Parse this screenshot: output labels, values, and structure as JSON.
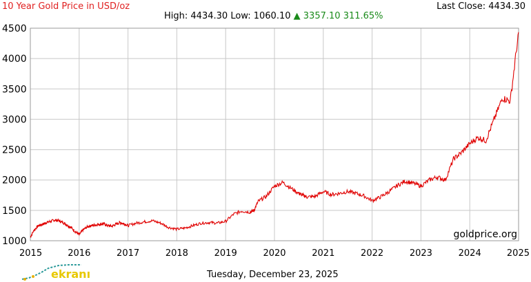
{
  "header": {
    "title": "10 Year Gold Price in USD/oz",
    "last_close_label": "Last Close:",
    "last_close_value": "4434.30",
    "high_label": "High:",
    "high_value": "4434.30",
    "low_label": "Low:",
    "low_value": "1060.10",
    "change_arrow": "▲",
    "change_value": "3357.10",
    "change_percent": "311.65%"
  },
  "watermark": "goldprice.org",
  "date_label": "Tuesday, December 23, 2025",
  "logo_text": "ekranı",
  "colors": {
    "line": "#e00000",
    "title": "#e02020",
    "up": "#1a8a1a",
    "grid": "#c8c8c8"
  },
  "chart_data": {
    "type": "line",
    "title": "10 Year Gold Price in USD/oz",
    "xlabel": "",
    "ylabel": "",
    "x_ticks": [
      "2015",
      "2016",
      "2017",
      "2018",
      "2019",
      "2020",
      "2021",
      "2022",
      "2023",
      "2024",
      "2025"
    ],
    "y_ticks": [
      1000,
      1500,
      2000,
      2500,
      3000,
      3500,
      4000,
      4500
    ],
    "xlim": [
      2015.0,
      2025.0
    ],
    "ylim": [
      1000,
      4500
    ],
    "grid": true,
    "series": [
      {
        "x": [
          2015.0,
          2015.08,
          2015.17,
          2015.25,
          2015.33,
          2015.42,
          2015.5,
          2015.58,
          2015.67,
          2015.75,
          2015.83,
          2015.92,
          2016.0,
          2016.08,
          2016.17,
          2016.25,
          2016.33,
          2016.42,
          2016.5,
          2016.58,
          2016.67,
          2016.75,
          2016.83,
          2016.92,
          2017.0,
          2017.17,
          2017.33,
          2017.5,
          2017.67,
          2017.83,
          2018.0,
          2018.17,
          2018.33,
          2018.5,
          2018.67,
          2018.83,
          2019.0,
          2019.17,
          2019.33,
          2019.5,
          2019.58,
          2019.67,
          2019.83,
          2020.0,
          2020.17,
          2020.33,
          2020.5,
          2020.58,
          2020.67,
          2020.83,
          2021.0,
          2021.17,
          2021.33,
          2021.5,
          2021.67,
          2021.83,
          2022.0,
          2022.17,
          2022.33,
          2022.5,
          2022.67,
          2022.83,
          2023.0,
          2023.17,
          2023.33,
          2023.5,
          2023.67,
          2023.83,
          2024.0,
          2024.17,
          2024.33,
          2024.5,
          2024.67,
          2024.83,
          2025.0
        ],
        "y": [
          1060,
          1180,
          1250,
          1270,
          1300,
          1320,
          1340,
          1330,
          1300,
          1260,
          1220,
          1150,
          1100,
          1180,
          1230,
          1250,
          1260,
          1270,
          1280,
          1250,
          1240,
          1270,
          1300,
          1280,
          1250,
          1290,
          1310,
          1330,
          1290,
          1220,
          1190,
          1210,
          1250,
          1290,
          1300,
          1290,
          1320,
          1440,
          1490,
          1470,
          1500,
          1650,
          1730,
          1900,
          1960,
          1870,
          1780,
          1750,
          1720,
          1730,
          1810,
          1760,
          1780,
          1810,
          1780,
          1740,
          1660,
          1720,
          1800,
          1900,
          1980,
          1950,
          1900,
          2000,
          2050,
          2000,
          2350,
          2450,
          2600,
          2700,
          2650,
          3000,
          3350,
          3300,
          4434.3
        ]
      }
    ]
  }
}
